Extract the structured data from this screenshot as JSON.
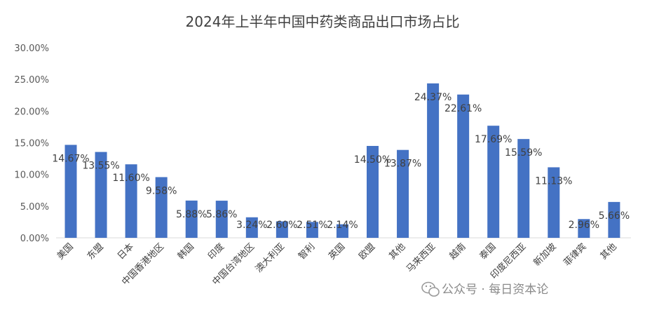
{
  "chart_data": {
    "type": "bar",
    "title": "2024年上半年中国中药类商品出口市场占比",
    "categories": [
      "美国",
      "东盟",
      "日本",
      "中国香港地区",
      "韩国",
      "印度",
      "中国台湾地区",
      "澳大利亚",
      "智利",
      "英国",
      "欧盟",
      "其他",
      "马来西亚",
      "越南",
      "泰国",
      "印度尼西亚",
      "新加坡",
      "菲律宾",
      "其他"
    ],
    "values": [
      14.67,
      13.55,
      11.6,
      9.58,
      5.88,
      5.86,
      3.24,
      2.6,
      2.51,
      2.14,
      14.5,
      13.87,
      24.37,
      22.61,
      17.69,
      15.59,
      11.13,
      2.96,
      5.66
    ],
    "data_labels": [
      "14.67%",
      "13.55%",
      "11.60%",
      "9.58%",
      "5.88%",
      "5.86%",
      "3.24%",
      "2.60%",
      "2.51%",
      "2.14%",
      "14.50%",
      "13.87%",
      "24.37%",
      "22.61%",
      "17.69%",
      "15.59%",
      "11.13%",
      "2.96%",
      "5.66%"
    ],
    "ylim": [
      0,
      30
    ],
    "yticks": [
      "0.00%",
      "5.00%",
      "10.00%",
      "15.00%",
      "20.00%",
      "25.00%",
      "30.00%"
    ],
    "xlabel": "",
    "ylabel": "",
    "grid": false,
    "bar_color": "#4472C4"
  },
  "watermark": {
    "text": "公众号 · 每日资本论",
    "icon": "wechat-icon"
  }
}
